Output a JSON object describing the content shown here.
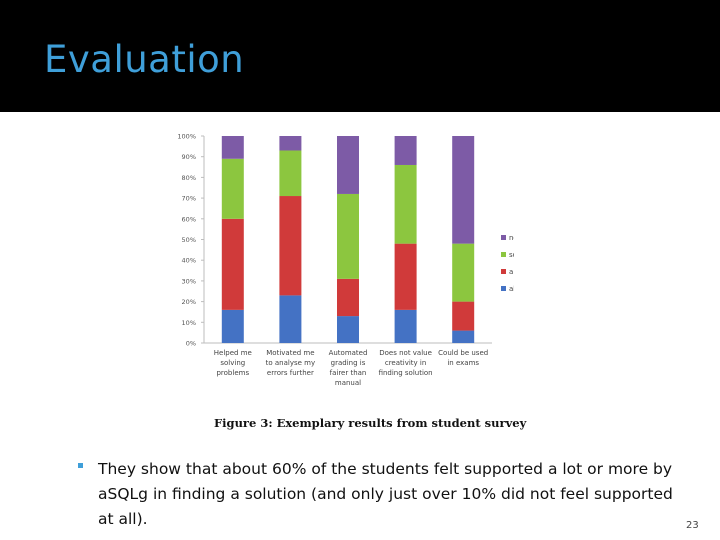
{
  "slide": {
    "title": "Evaluation",
    "caption": "Figure 3: Exemplary results from student survey",
    "bullet": "They show that about 60% of the students felt supported a lot or more by aSQLg in finding a solution (and only just over 10% did not feel supported at all).",
    "page_number": "23"
  },
  "colors": {
    "title_band": "#000000",
    "title_text": "#3f9fd9",
    "bullet_marker": "#3f9fd9"
  },
  "chart_data": {
    "type": "bar",
    "stacked": true,
    "percent": true,
    "title": "",
    "xlabel": "",
    "ylabel": "",
    "ylim": [
      0,
      100
    ],
    "y_ticks": [
      "0%",
      "10%",
      "20%",
      "30%",
      "40%",
      "50%",
      "60%",
      "70%",
      "80%",
      "90%",
      "100%"
    ],
    "categories": [
      [
        "Helped me",
        "solving",
        "problems"
      ],
      [
        "Motivated me",
        "to analyse my",
        "errors further"
      ],
      [
        "Automated",
        "grading is",
        "fairer than",
        "manual"
      ],
      [
        "Does not value",
        "creativity in",
        "finding solution"
      ],
      [
        "Could be used",
        "in exams"
      ]
    ],
    "series": [
      {
        "name": "absolutely",
        "color": "#4472c4",
        "values": [
          16,
          23,
          13,
          16,
          6
        ]
      },
      {
        "name": "a lot",
        "color": "#d03a3a",
        "values": [
          44,
          48,
          18,
          32,
          14
        ]
      },
      {
        "name": "somewhat",
        "color": "#8cc63f",
        "values": [
          29,
          22,
          41,
          38,
          28
        ]
      },
      {
        "name": "not at all",
        "color": "#7d5ba6",
        "values": [
          11,
          7,
          28,
          14,
          52
        ]
      }
    ],
    "legend_order": [
      "not at all",
      "somewhat",
      "a lot",
      "absolutely"
    ],
    "legend_position": "right",
    "grid": false
  }
}
